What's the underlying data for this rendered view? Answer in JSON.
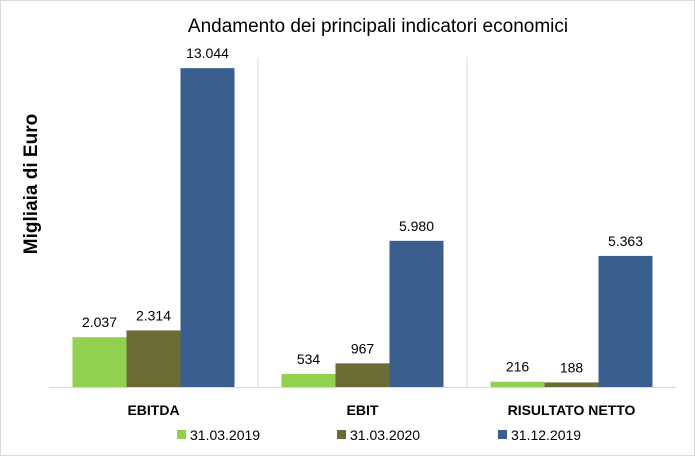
{
  "chart_data": {
    "type": "bar",
    "title": "Andamento dei principali indicatori economici",
    "xlabel": "",
    "ylabel": "Migliaia di Euro",
    "categories": [
      "EBITDA",
      "EBIT",
      "RISULTATO NETTO"
    ],
    "series": [
      {
        "name": "31.03.2019",
        "color": "#92d050",
        "values": [
          2037,
          534,
          216
        ],
        "labels": [
          "2.037",
          "534",
          "216"
        ]
      },
      {
        "name": "31.03.2020",
        "color": "#6b6b35",
        "values": [
          2314,
          967,
          188
        ],
        "labels": [
          "2.314",
          "967",
          "188"
        ]
      },
      {
        "name": "31.12.2019",
        "color": "#3a5f8f",
        "values": [
          13044,
          5980,
          5363
        ],
        "labels": [
          "13.044",
          "5.980",
          "5.363"
        ]
      }
    ],
    "ylim": [
      0,
      13500
    ],
    "grid": false,
    "category_separators": true,
    "legend": "bottom"
  }
}
